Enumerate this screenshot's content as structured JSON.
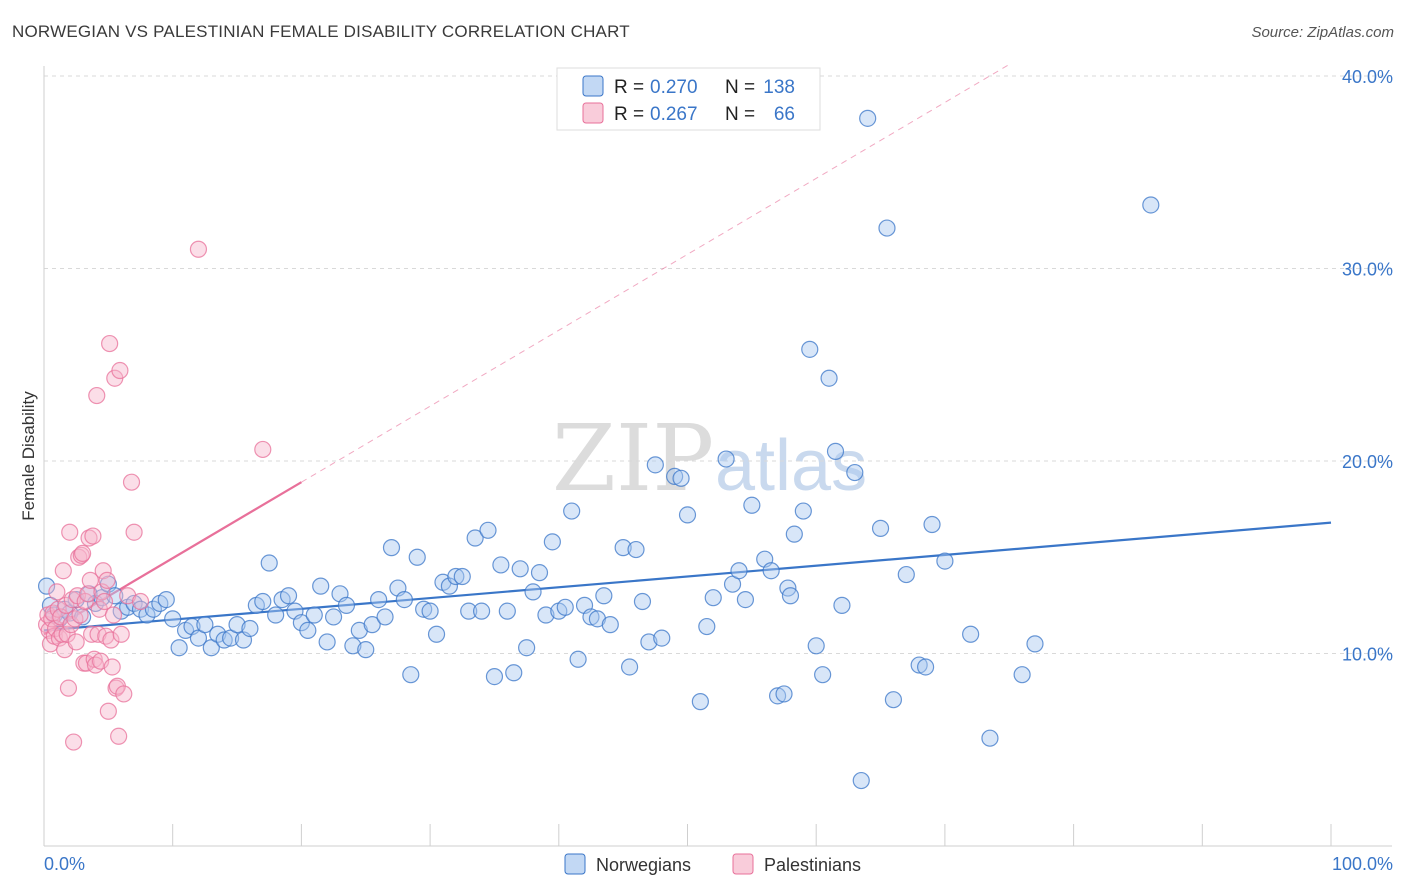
{
  "header": {
    "title": "NORWEGIAN VS PALESTINIAN FEMALE DISABILITY CORRELATION CHART",
    "source": "Source: ZipAtlas.com"
  },
  "colors": {
    "blue": "#3a76c8",
    "blue_fill": "#a8c8ef",
    "pink": "#e8709a",
    "pink_fill": "#f6b6cb"
  },
  "chart_data": {
    "type": "scatter",
    "title": "NORWEGIAN VS PALESTINIAN FEMALE DISABILITY CORRELATION CHART",
    "xlabel": "",
    "ylabel": "Female Disability",
    "xlim": [
      0,
      100
    ],
    "ylim": [
      0,
      40
    ],
    "x_tick_labels": [
      "0.0%",
      "100.0%"
    ],
    "y_ticks": [
      10,
      20,
      30,
      40
    ],
    "y_tick_labels": [
      "10.0%",
      "20.0%",
      "30.0%",
      "40.0%"
    ],
    "watermark": {
      "zip": "ZIP",
      "atlas": "atlas"
    },
    "legend": {
      "r_label": "R =",
      "n_label": "N =",
      "entries": [
        {
          "name": "Norwegians",
          "r": "0.270",
          "n": "138"
        },
        {
          "name": "Palestinians",
          "r": "0.267",
          "n": "66"
        }
      ]
    },
    "series": [
      {
        "name": "Norwegians",
        "color": "blue",
        "trend": {
          "x0": 0,
          "y0": 11.2,
          "x1": 100,
          "y1": 16.8
        },
        "points": [
          [
            0.2,
            13.5
          ],
          [
            0.5,
            12.5
          ],
          [
            0.8,
            12.0
          ],
          [
            1.2,
            11.8
          ],
          [
            1.6,
            12.3
          ],
          [
            2.0,
            12.1
          ],
          [
            2.5,
            12.8
          ],
          [
            3.0,
            11.9
          ],
          [
            3.5,
            13.1
          ],
          [
            4.0,
            12.6
          ],
          [
            4.5,
            12.9
          ],
          [
            5.0,
            13.6
          ],
          [
            5.5,
            13.0
          ],
          [
            6.0,
            12.2
          ],
          [
            6.5,
            12.4
          ],
          [
            7.0,
            12.6
          ],
          [
            7.5,
            12.3
          ],
          [
            8.0,
            12.0
          ],
          [
            8.5,
            12.3
          ],
          [
            9.0,
            12.6
          ],
          [
            9.5,
            12.8
          ],
          [
            10.0,
            11.8
          ],
          [
            10.5,
            10.3
          ],
          [
            11.0,
            11.2
          ],
          [
            11.5,
            11.4
          ],
          [
            12.0,
            10.8
          ],
          [
            12.5,
            11.5
          ],
          [
            13.0,
            10.3
          ],
          [
            13.5,
            11.0
          ],
          [
            14.0,
            10.7
          ],
          [
            14.5,
            10.8
          ],
          [
            15.0,
            11.5
          ],
          [
            15.5,
            10.7
          ],
          [
            16.0,
            11.3
          ],
          [
            16.5,
            12.5
          ],
          [
            17.0,
            12.7
          ],
          [
            17.5,
            14.7
          ],
          [
            18.0,
            12.0
          ],
          [
            18.5,
            12.8
          ],
          [
            19.0,
            13.0
          ],
          [
            19.5,
            12.2
          ],
          [
            20.0,
            11.6
          ],
          [
            20.5,
            11.2
          ],
          [
            21.0,
            12.0
          ],
          [
            21.5,
            13.5
          ],
          [
            22.0,
            10.6
          ],
          [
            22.5,
            11.9
          ],
          [
            23.0,
            13.1
          ],
          [
            23.5,
            12.5
          ],
          [
            24.0,
            10.4
          ],
          [
            24.5,
            11.2
          ],
          [
            25.0,
            10.2
          ],
          [
            25.5,
            11.5
          ],
          [
            26.0,
            12.8
          ],
          [
            26.5,
            11.9
          ],
          [
            27.0,
            15.5
          ],
          [
            27.5,
            13.4
          ],
          [
            28.0,
            12.8
          ],
          [
            28.5,
            8.9
          ],
          [
            29.0,
            15.0
          ],
          [
            29.5,
            12.3
          ],
          [
            30.0,
            12.2
          ],
          [
            30.5,
            11.0
          ],
          [
            31.0,
            13.7
          ],
          [
            31.5,
            13.5
          ],
          [
            32.0,
            14.0
          ],
          [
            32.5,
            14.0
          ],
          [
            33.0,
            12.2
          ],
          [
            33.5,
            16.0
          ],
          [
            34.0,
            12.2
          ],
          [
            34.5,
            16.4
          ],
          [
            35.0,
            8.8
          ],
          [
            35.5,
            14.6
          ],
          [
            36.0,
            12.2
          ],
          [
            36.5,
            9.0
          ],
          [
            37.0,
            14.4
          ],
          [
            37.5,
            10.3
          ],
          [
            38.0,
            13.2
          ],
          [
            38.5,
            14.2
          ],
          [
            39.0,
            12.0
          ],
          [
            39.5,
            15.8
          ],
          [
            40.0,
            12.2
          ],
          [
            40.5,
            12.4
          ],
          [
            41.0,
            17.4
          ],
          [
            41.5,
            9.7
          ],
          [
            42.0,
            12.5
          ],
          [
            42.5,
            11.9
          ],
          [
            43.0,
            11.8
          ],
          [
            43.5,
            13.0
          ],
          [
            44.0,
            11.5
          ],
          [
            45.0,
            15.5
          ],
          [
            45.5,
            9.3
          ],
          [
            46.0,
            15.4
          ],
          [
            46.5,
            12.7
          ],
          [
            47.0,
            10.6
          ],
          [
            47.5,
            19.8
          ],
          [
            48.0,
            10.8
          ],
          [
            49.0,
            19.2
          ],
          [
            49.5,
            19.1
          ],
          [
            50.0,
            17.2
          ],
          [
            51.0,
            7.5
          ],
          [
            51.5,
            11.4
          ],
          [
            52.0,
            12.9
          ],
          [
            53.0,
            20.1
          ],
          [
            53.5,
            13.6
          ],
          [
            54.0,
            14.3
          ],
          [
            54.5,
            12.8
          ],
          [
            55.0,
            17.7
          ],
          [
            56.0,
            14.9
          ],
          [
            56.5,
            14.3
          ],
          [
            57.0,
            7.8
          ],
          [
            57.5,
            7.9
          ],
          [
            57.8,
            13.4
          ],
          [
            58.0,
            13.0
          ],
          [
            58.3,
            16.2
          ],
          [
            59.0,
            17.4
          ],
          [
            59.5,
            25.8
          ],
          [
            60.0,
            10.4
          ],
          [
            60.5,
            8.9
          ],
          [
            61.0,
            24.3
          ],
          [
            61.5,
            20.5
          ],
          [
            62.0,
            12.5
          ],
          [
            63.0,
            19.4
          ],
          [
            63.5,
            3.4
          ],
          [
            64.0,
            37.8
          ],
          [
            65.0,
            16.5
          ],
          [
            65.5,
            32.1
          ],
          [
            66.0,
            7.6
          ],
          [
            67.0,
            14.1
          ],
          [
            68.0,
            9.4
          ],
          [
            68.5,
            9.3
          ],
          [
            69.0,
            16.7
          ],
          [
            70.0,
            14.8
          ],
          [
            72.0,
            11.0
          ],
          [
            73.5,
            5.6
          ],
          [
            76.0,
            8.9
          ],
          [
            77.0,
            10.5
          ],
          [
            86.0,
            33.3
          ]
        ]
      },
      {
        "name": "Palestinians",
        "color": "pink",
        "trend": {
          "x0": 0,
          "y0": 11.0,
          "x1": 20,
          "y1": 18.9
        },
        "trend_extension": {
          "x0": 20,
          "y0": 18.9,
          "x1": 75,
          "y1": 40.6
        },
        "points": [
          [
            0.2,
            11.5
          ],
          [
            0.3,
            12.0
          ],
          [
            0.4,
            11.2
          ],
          [
            0.5,
            10.5
          ],
          [
            0.6,
            11.8
          ],
          [
            0.7,
            12.1
          ],
          [
            0.8,
            10.9
          ],
          [
            0.9,
            11.3
          ],
          [
            1.0,
            13.2
          ],
          [
            1.1,
            12.3
          ],
          [
            1.2,
            10.8
          ],
          [
            1.3,
            11.9
          ],
          [
            1.4,
            11.0
          ],
          [
            1.5,
            14.3
          ],
          [
            1.6,
            10.2
          ],
          [
            1.7,
            12.5
          ],
          [
            1.8,
            11.0
          ],
          [
            1.9,
            8.2
          ],
          [
            2.0,
            16.3
          ],
          [
            2.1,
            11.5
          ],
          [
            2.2,
            12.8
          ],
          [
            2.3,
            5.4
          ],
          [
            2.4,
            11.8
          ],
          [
            2.5,
            10.6
          ],
          [
            2.6,
            13.0
          ],
          [
            2.7,
            15.0
          ],
          [
            2.8,
            12.0
          ],
          [
            2.9,
            15.1
          ],
          [
            3.0,
            15.2
          ],
          [
            3.1,
            9.5
          ],
          [
            3.2,
            12.7
          ],
          [
            3.3,
            9.5
          ],
          [
            3.4,
            13.1
          ],
          [
            3.5,
            16.0
          ],
          [
            3.6,
            13.8
          ],
          [
            3.7,
            11.0
          ],
          [
            3.8,
            16.1
          ],
          [
            3.9,
            9.7
          ],
          [
            4.0,
            9.4
          ],
          [
            4.1,
            23.4
          ],
          [
            4.2,
            11.0
          ],
          [
            4.3,
            12.3
          ],
          [
            4.4,
            9.6
          ],
          [
            4.5,
            13.2
          ],
          [
            4.6,
            14.3
          ],
          [
            4.7,
            12.7
          ],
          [
            4.8,
            10.9
          ],
          [
            4.9,
            13.8
          ],
          [
            5.0,
            7.0
          ],
          [
            5.1,
            26.1
          ],
          [
            5.2,
            10.7
          ],
          [
            5.3,
            9.3
          ],
          [
            5.4,
            12.0
          ],
          [
            5.5,
            24.3
          ],
          [
            5.6,
            8.2
          ],
          [
            5.7,
            8.3
          ],
          [
            5.8,
            5.7
          ],
          [
            5.9,
            24.7
          ],
          [
            6.0,
            11.0
          ],
          [
            6.2,
            7.9
          ],
          [
            6.5,
            13.0
          ],
          [
            6.8,
            18.9
          ],
          [
            7.0,
            16.3
          ],
          [
            7.5,
            12.7
          ],
          [
            12.0,
            31.0
          ],
          [
            17.0,
            20.6
          ]
        ]
      }
    ]
  }
}
